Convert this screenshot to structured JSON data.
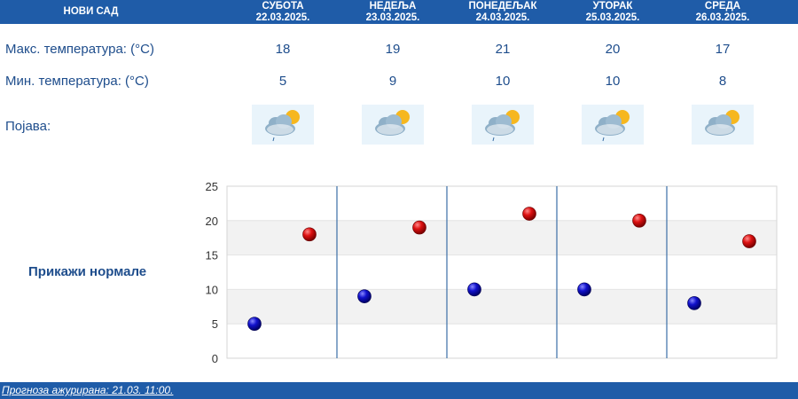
{
  "header": {
    "city": "НОВИ САД",
    "days": [
      {
        "day": "СУБОТА",
        "date": "22.03.2025."
      },
      {
        "day": "НЕДЕЉА",
        "date": "23.03.2025."
      },
      {
        "day": "ПОНЕДЕЉАК",
        "date": "24.03.2025."
      },
      {
        "day": "УТОРАК",
        "date": "25.03.2025."
      },
      {
        "day": "СРЕДА",
        "date": "26.03.2025."
      }
    ]
  },
  "rows": {
    "max_label": "Макс. температура: (°C)",
    "min_label": "Мин. температура: (°C)",
    "phenomenon_label": "Појава:"
  },
  "forecast": {
    "max": [
      "18",
      "19",
      "21",
      "20",
      "17"
    ],
    "min": [
      "5",
      "9",
      "10",
      "10",
      "8"
    ],
    "icons": [
      "partly-cloudy-light-rain-icon",
      "partly-cloudy-icon",
      "partly-cloudy-light-rain-icon",
      "partly-cloudy-light-rain-icon",
      "partly-cloudy-icon"
    ]
  },
  "normals_link": "Прикажи нормале",
  "footer": {
    "updated": "Прогноза ажурирана:  21.03. 11:00."
  },
  "colors": {
    "header_bg": "#1f5ca8",
    "text": "#1e4d8c",
    "max_dot": "#cc0000",
    "min_dot": "#0000bb",
    "band": "#f2f2f2"
  },
  "chart_data": {
    "type": "scatter",
    "categories": [
      "22.03.2025.",
      "23.03.2025.",
      "24.03.2025.",
      "25.03.2025.",
      "26.03.2025."
    ],
    "series": [
      {
        "values": [
          18,
          19,
          21,
          20,
          17
        ]
      },
      {
        "values": [
          5,
          9,
          10,
          10,
          8
        ]
      }
    ],
    "ylim": [
      0,
      25
    ],
    "yticks": [
      0,
      5,
      10,
      15,
      20,
      25
    ],
    "grid": true
  }
}
